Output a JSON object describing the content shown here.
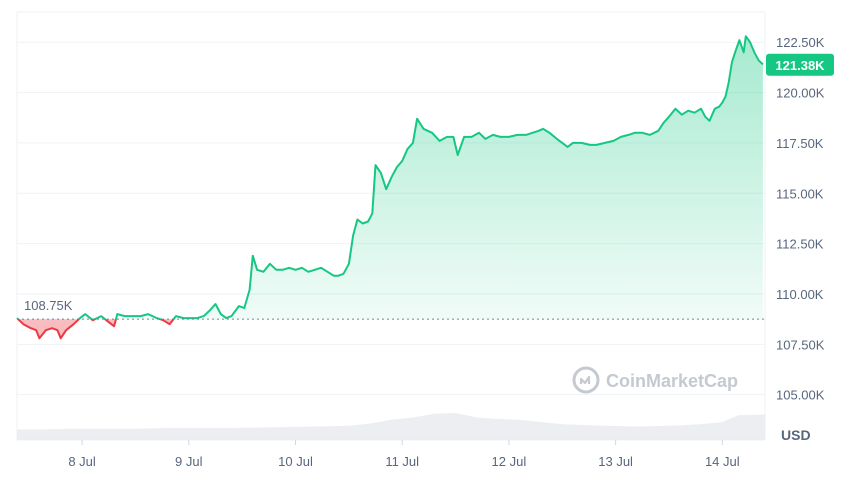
{
  "chart_data": {
    "type": "area",
    "currency": "USD",
    "reference_label": "108.75K",
    "reference_value": 108.75,
    "current_label": "121.38K",
    "current_value": 121.38,
    "y_ticks": [
      {
        "value": 105.0,
        "label": "105.00K"
      },
      {
        "value": 107.5,
        "label": "107.50K"
      },
      {
        "value": 110.0,
        "label": "110.00K"
      },
      {
        "value": 112.5,
        "label": "112.50K"
      },
      {
        "value": 115.0,
        "label": "115.00K"
      },
      {
        "value": 117.5,
        "label": "117.50K"
      },
      {
        "value": 120.0,
        "label": "120.00K"
      },
      {
        "value": 122.5,
        "label": "122.50K"
      }
    ],
    "x_ticks": [
      {
        "value": 1,
        "label": "8 Jul"
      },
      {
        "value": 2,
        "label": "9 Jul"
      },
      {
        "value": 3,
        "label": "10 Jul"
      },
      {
        "value": 4,
        "label": "11 Jul"
      },
      {
        "value": 5,
        "label": "12 Jul"
      },
      {
        "value": 6,
        "label": "13 Jul"
      },
      {
        "value": 7,
        "label": "14 Jul"
      }
    ],
    "xlim": [
      0.39,
      7.4
    ],
    "ylim": [
      102.75,
      124.0
    ],
    "price": [
      [
        0.39,
        108.8
      ],
      [
        0.45,
        108.5
      ],
      [
        0.52,
        108.3
      ],
      [
        0.57,
        108.2
      ],
      [
        0.6,
        107.8
      ],
      [
        0.66,
        108.2
      ],
      [
        0.72,
        108.3
      ],
      [
        0.77,
        108.2
      ],
      [
        0.8,
        107.8
      ],
      [
        0.85,
        108.2
      ],
      [
        0.92,
        108.5
      ],
      [
        0.98,
        108.8
      ],
      [
        1.03,
        109.0
      ],
      [
        1.1,
        108.7
      ],
      [
        1.18,
        108.9
      ],
      [
        1.25,
        108.6
      ],
      [
        1.3,
        108.4
      ],
      [
        1.33,
        109.0
      ],
      [
        1.4,
        108.9
      ],
      [
        1.48,
        108.9
      ],
      [
        1.55,
        108.9
      ],
      [
        1.62,
        109.0
      ],
      [
        1.7,
        108.8
      ],
      [
        1.76,
        108.7
      ],
      [
        1.82,
        108.5
      ],
      [
        1.88,
        108.9
      ],
      [
        1.95,
        108.8
      ],
      [
        2.02,
        108.8
      ],
      [
        2.08,
        108.8
      ],
      [
        2.14,
        108.9
      ],
      [
        2.2,
        109.2
      ],
      [
        2.25,
        109.5
      ],
      [
        2.3,
        109.0
      ],
      [
        2.35,
        108.8
      ],
      [
        2.4,
        108.9
      ],
      [
        2.47,
        109.4
      ],
      [
        2.52,
        109.3
      ],
      [
        2.57,
        110.2
      ],
      [
        2.6,
        111.9
      ],
      [
        2.64,
        111.2
      ],
      [
        2.7,
        111.1
      ],
      [
        2.76,
        111.5
      ],
      [
        2.82,
        111.2
      ],
      [
        2.88,
        111.2
      ],
      [
        2.94,
        111.3
      ],
      [
        3.0,
        111.2
      ],
      [
        3.06,
        111.3
      ],
      [
        3.12,
        111.1
      ],
      [
        3.18,
        111.2
      ],
      [
        3.24,
        111.3
      ],
      [
        3.3,
        111.1
      ],
      [
        3.36,
        110.9
      ],
      [
        3.4,
        110.9
      ],
      [
        3.45,
        111.0
      ],
      [
        3.5,
        111.5
      ],
      [
        3.54,
        112.9
      ],
      [
        3.58,
        113.7
      ],
      [
        3.63,
        113.5
      ],
      [
        3.68,
        113.6
      ],
      [
        3.72,
        114.0
      ],
      [
        3.75,
        116.4
      ],
      [
        3.8,
        116.0
      ],
      [
        3.85,
        115.2
      ],
      [
        3.9,
        115.8
      ],
      [
        3.95,
        116.3
      ],
      [
        4.0,
        116.6
      ],
      [
        4.05,
        117.2
      ],
      [
        4.1,
        117.5
      ],
      [
        4.14,
        118.7
      ],
      [
        4.2,
        118.2
      ],
      [
        4.28,
        118.0
      ],
      [
        4.35,
        117.6
      ],
      [
        4.42,
        117.8
      ],
      [
        4.48,
        117.8
      ],
      [
        4.52,
        116.9
      ],
      [
        4.58,
        117.8
      ],
      [
        4.65,
        117.8
      ],
      [
        4.72,
        118.0
      ],
      [
        4.78,
        117.7
      ],
      [
        4.85,
        117.9
      ],
      [
        4.92,
        117.8
      ],
      [
        5.0,
        117.8
      ],
      [
        5.08,
        117.9
      ],
      [
        5.16,
        117.9
      ],
      [
        5.22,
        118.0
      ],
      [
        5.28,
        118.1
      ],
      [
        5.32,
        118.2
      ],
      [
        5.38,
        118.0
      ],
      [
        5.45,
        117.7
      ],
      [
        5.5,
        117.5
      ],
      [
        5.55,
        117.3
      ],
      [
        5.6,
        117.5
      ],
      [
        5.68,
        117.5
      ],
      [
        5.76,
        117.4
      ],
      [
        5.82,
        117.4
      ],
      [
        5.9,
        117.5
      ],
      [
        5.98,
        117.6
      ],
      [
        6.05,
        117.8
      ],
      [
        6.12,
        117.9
      ],
      [
        6.18,
        118.0
      ],
      [
        6.25,
        118.0
      ],
      [
        6.32,
        117.9
      ],
      [
        6.4,
        118.1
      ],
      [
        6.45,
        118.5
      ],
      [
        6.5,
        118.8
      ],
      [
        6.56,
        119.2
      ],
      [
        6.62,
        118.9
      ],
      [
        6.68,
        119.1
      ],
      [
        6.74,
        119.0
      ],
      [
        6.8,
        119.2
      ],
      [
        6.84,
        118.8
      ],
      [
        6.88,
        118.6
      ],
      [
        6.93,
        119.2
      ],
      [
        6.97,
        119.3
      ],
      [
        7.0,
        119.5
      ],
      [
        7.03,
        119.8
      ],
      [
        7.06,
        120.5
      ],
      [
        7.09,
        121.5
      ],
      [
        7.12,
        122.0
      ],
      [
        7.16,
        122.6
      ],
      [
        7.2,
        122.0
      ],
      [
        7.22,
        122.8
      ],
      [
        7.26,
        122.5
      ],
      [
        7.3,
        122.0
      ],
      [
        7.34,
        121.6
      ],
      [
        7.38,
        121.4
      ]
    ],
    "volume": [
      [
        0.39,
        0.14
      ],
      [
        0.6,
        0.14
      ],
      [
        0.9,
        0.15
      ],
      [
        1.2,
        0.15
      ],
      [
        1.5,
        0.15
      ],
      [
        1.8,
        0.16
      ],
      [
        2.1,
        0.16
      ],
      [
        2.4,
        0.16
      ],
      [
        2.8,
        0.17
      ],
      [
        3.2,
        0.18
      ],
      [
        3.5,
        0.19
      ],
      [
        3.7,
        0.22
      ],
      [
        3.9,
        0.27
      ],
      [
        4.1,
        0.3
      ],
      [
        4.3,
        0.35
      ],
      [
        4.5,
        0.36
      ],
      [
        4.7,
        0.3
      ],
      [
        4.9,
        0.28
      ],
      [
        5.1,
        0.27
      ],
      [
        5.3,
        0.24
      ],
      [
        5.5,
        0.21
      ],
      [
        5.7,
        0.2
      ],
      [
        5.9,
        0.19
      ],
      [
        6.2,
        0.18
      ],
      [
        6.5,
        0.19
      ],
      [
        6.8,
        0.21
      ],
      [
        7.0,
        0.24
      ],
      [
        7.15,
        0.33
      ],
      [
        7.4,
        0.34
      ]
    ],
    "colors": {
      "up": "#16c784",
      "down": "#ea3943",
      "grid": "#eff2f5",
      "volume": "#e6e8ec",
      "watermark": "#c4c9d2"
    }
  },
  "watermark": {
    "text": "CoinMarketCap",
    "icon": "coinmarketcap-logo-icon"
  }
}
